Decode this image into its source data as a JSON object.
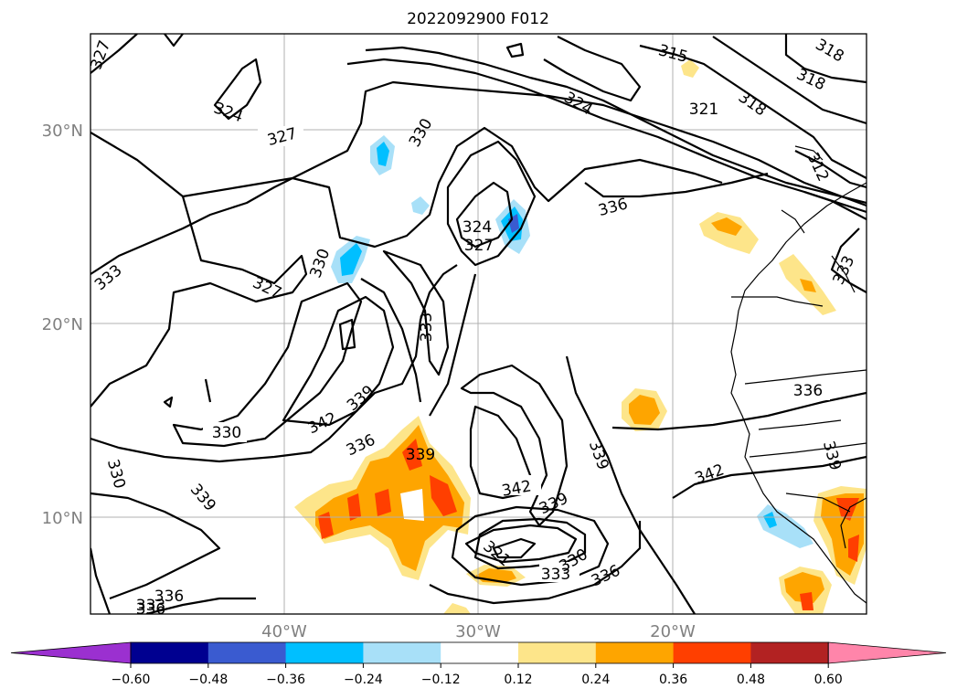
{
  "title": "2022092900 F012",
  "lat_labels": [
    "30°N",
    "20°N",
    "10°N"
  ],
  "lon_labels": [
    "40°W",
    "30°W",
    "20°W"
  ],
  "contour_labels": [
    "327",
    "324",
    "327",
    "330",
    "333",
    "327",
    "330",
    "330",
    "333",
    "339",
    "342",
    "336",
    "339",
    "330",
    "336",
    "339",
    "336",
    "333",
    "324",
    "327",
    "315",
    "324",
    "318",
    "318",
    "321",
    "318",
    "312",
    "333",
    "336",
    "336",
    "342",
    "339",
    "339",
    "321",
    "330",
    "333",
    "336",
    "339",
    "336",
    "342"
  ],
  "colorbar": {
    "colors": [
      "#9b30d0",
      "#000090",
      "#3a5bd0",
      "#00bfff",
      "#a8e0f8",
      "#ffffff",
      "#fde58a",
      "#fea500",
      "#ff3f00",
      "#b22222",
      "#ff85aa"
    ],
    "tick_labels": [
      "−0.60",
      "−0.48",
      "−0.36",
      "−0.24",
      "−0.12",
      "0.12",
      "0.24",
      "0.36",
      "0.48",
      "0.60"
    ]
  }
}
